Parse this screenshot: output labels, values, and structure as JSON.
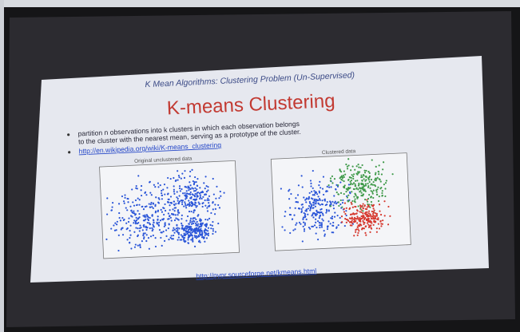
{
  "slide": {
    "subtitle": "K Mean Algorithms: Clustering Problem (Un-Supervised)",
    "title": "K-means Clustering",
    "bullets": [
      [
        "partition n observations into k clusters in which each observation belongs",
        "to the cluster with the nearest mean, serving as a prototype of the cluster."
      ],
      [
        "http://en.wikipedia.org/wiki/K-means_clustering"
      ]
    ],
    "plots": [
      {
        "title": "Original unclustered data"
      },
      {
        "title": "Clustered data"
      }
    ],
    "footer_link": "http://pypr.sourceforge.net/kmeans.html"
  }
}
